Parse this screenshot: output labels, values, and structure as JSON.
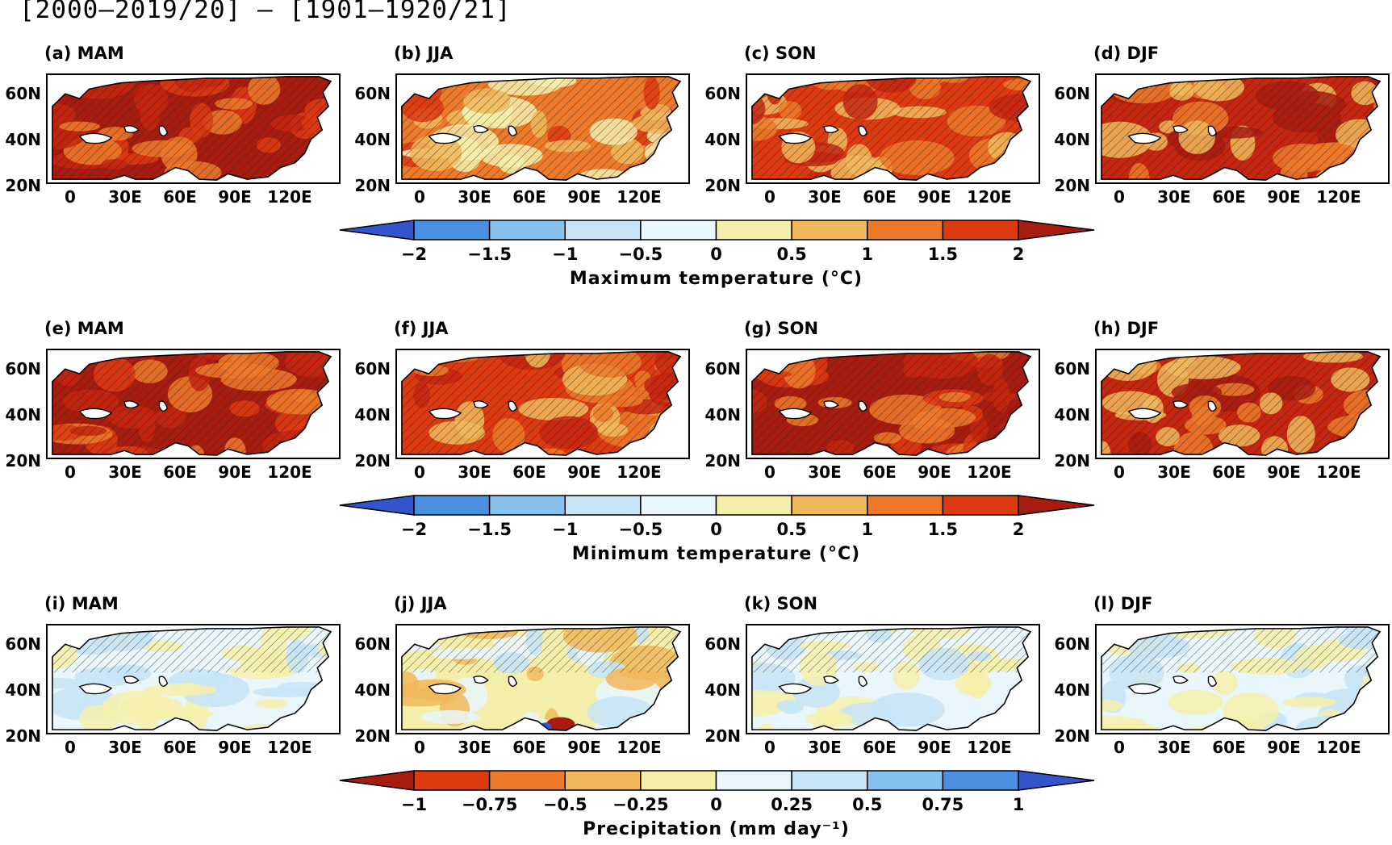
{
  "figure_title": "[2000—2019/20] — [1901—1920/21]",
  "lat_labels": [
    "60N",
    "40N",
    "20N"
  ],
  "lon_labels": [
    "0",
    "30E",
    "60E",
    "90E",
    "120E"
  ],
  "rows": [
    {
      "variable": "Maximum temperature",
      "panels": [
        {
          "label": "(a)  MAM",
          "pattern": "warm_strong"
        },
        {
          "label": "(b)  JJA",
          "pattern": "warm_mixed"
        },
        {
          "label": "(c)  SON",
          "pattern": "warm_mid"
        },
        {
          "label": "(d)  DJF",
          "pattern": "warm_dj"
        }
      ],
      "colorbar": {
        "title": "Maximum  temperature  (°C)",
        "ticks": [
          "−2",
          "−1.5",
          "−1",
          "−0.5",
          "0",
          "0.5",
          "1",
          "1.5",
          "2"
        ],
        "colors": [
          "#3355cc",
          "#4a8fe0",
          "#86c1ee",
          "#c6e4f6",
          "#e9f6fb",
          "#f4eeab",
          "#f0b85a",
          "#ec7a2a",
          "#dd3a12",
          "#a81c10"
        ]
      }
    },
    {
      "variable": "Minimum temperature",
      "panels": [
        {
          "label": "(e)  MAM",
          "pattern": "warm_strong"
        },
        {
          "label": "(f)  JJA",
          "pattern": "warm_mid"
        },
        {
          "label": "(g)  SON",
          "pattern": "warm_strong"
        },
        {
          "label": "(h)  DJF",
          "pattern": "warm_dj"
        }
      ],
      "colorbar": {
        "title": "Minimum  temperature  (°C)",
        "ticks": [
          "−2",
          "−1.5",
          "−1",
          "−0.5",
          "0",
          "0.5",
          "1",
          "1.5",
          "2"
        ],
        "colors": [
          "#3355cc",
          "#4a8fe0",
          "#86c1ee",
          "#c6e4f6",
          "#e9f6fb",
          "#f4eeab",
          "#f0b85a",
          "#ec7a2a",
          "#dd3a12",
          "#a81c10"
        ]
      }
    },
    {
      "variable": "Precipitation",
      "panels": [
        {
          "label": "(i)  MAM",
          "pattern": "precip"
        },
        {
          "label": "(j)  JJA",
          "pattern": "precip_jja"
        },
        {
          "label": "(k)  SON",
          "pattern": "precip"
        },
        {
          "label": "(l)  DJF",
          "pattern": "precip"
        }
      ],
      "colorbar": {
        "title": "Precipitation  (mm  day⁻¹)",
        "ticks": [
          "−1",
          "−0.75",
          "−0.5",
          "−0.25",
          "0",
          "0.25",
          "0.5",
          "0.75",
          "1"
        ],
        "colors": [
          "#a81c10",
          "#dd3a12",
          "#ec7a2a",
          "#f0b85a",
          "#f4eeab",
          "#e9f6fb",
          "#c6e4f6",
          "#86c1ee",
          "#4a8fe0",
          "#3355cc"
        ]
      }
    }
  ]
}
